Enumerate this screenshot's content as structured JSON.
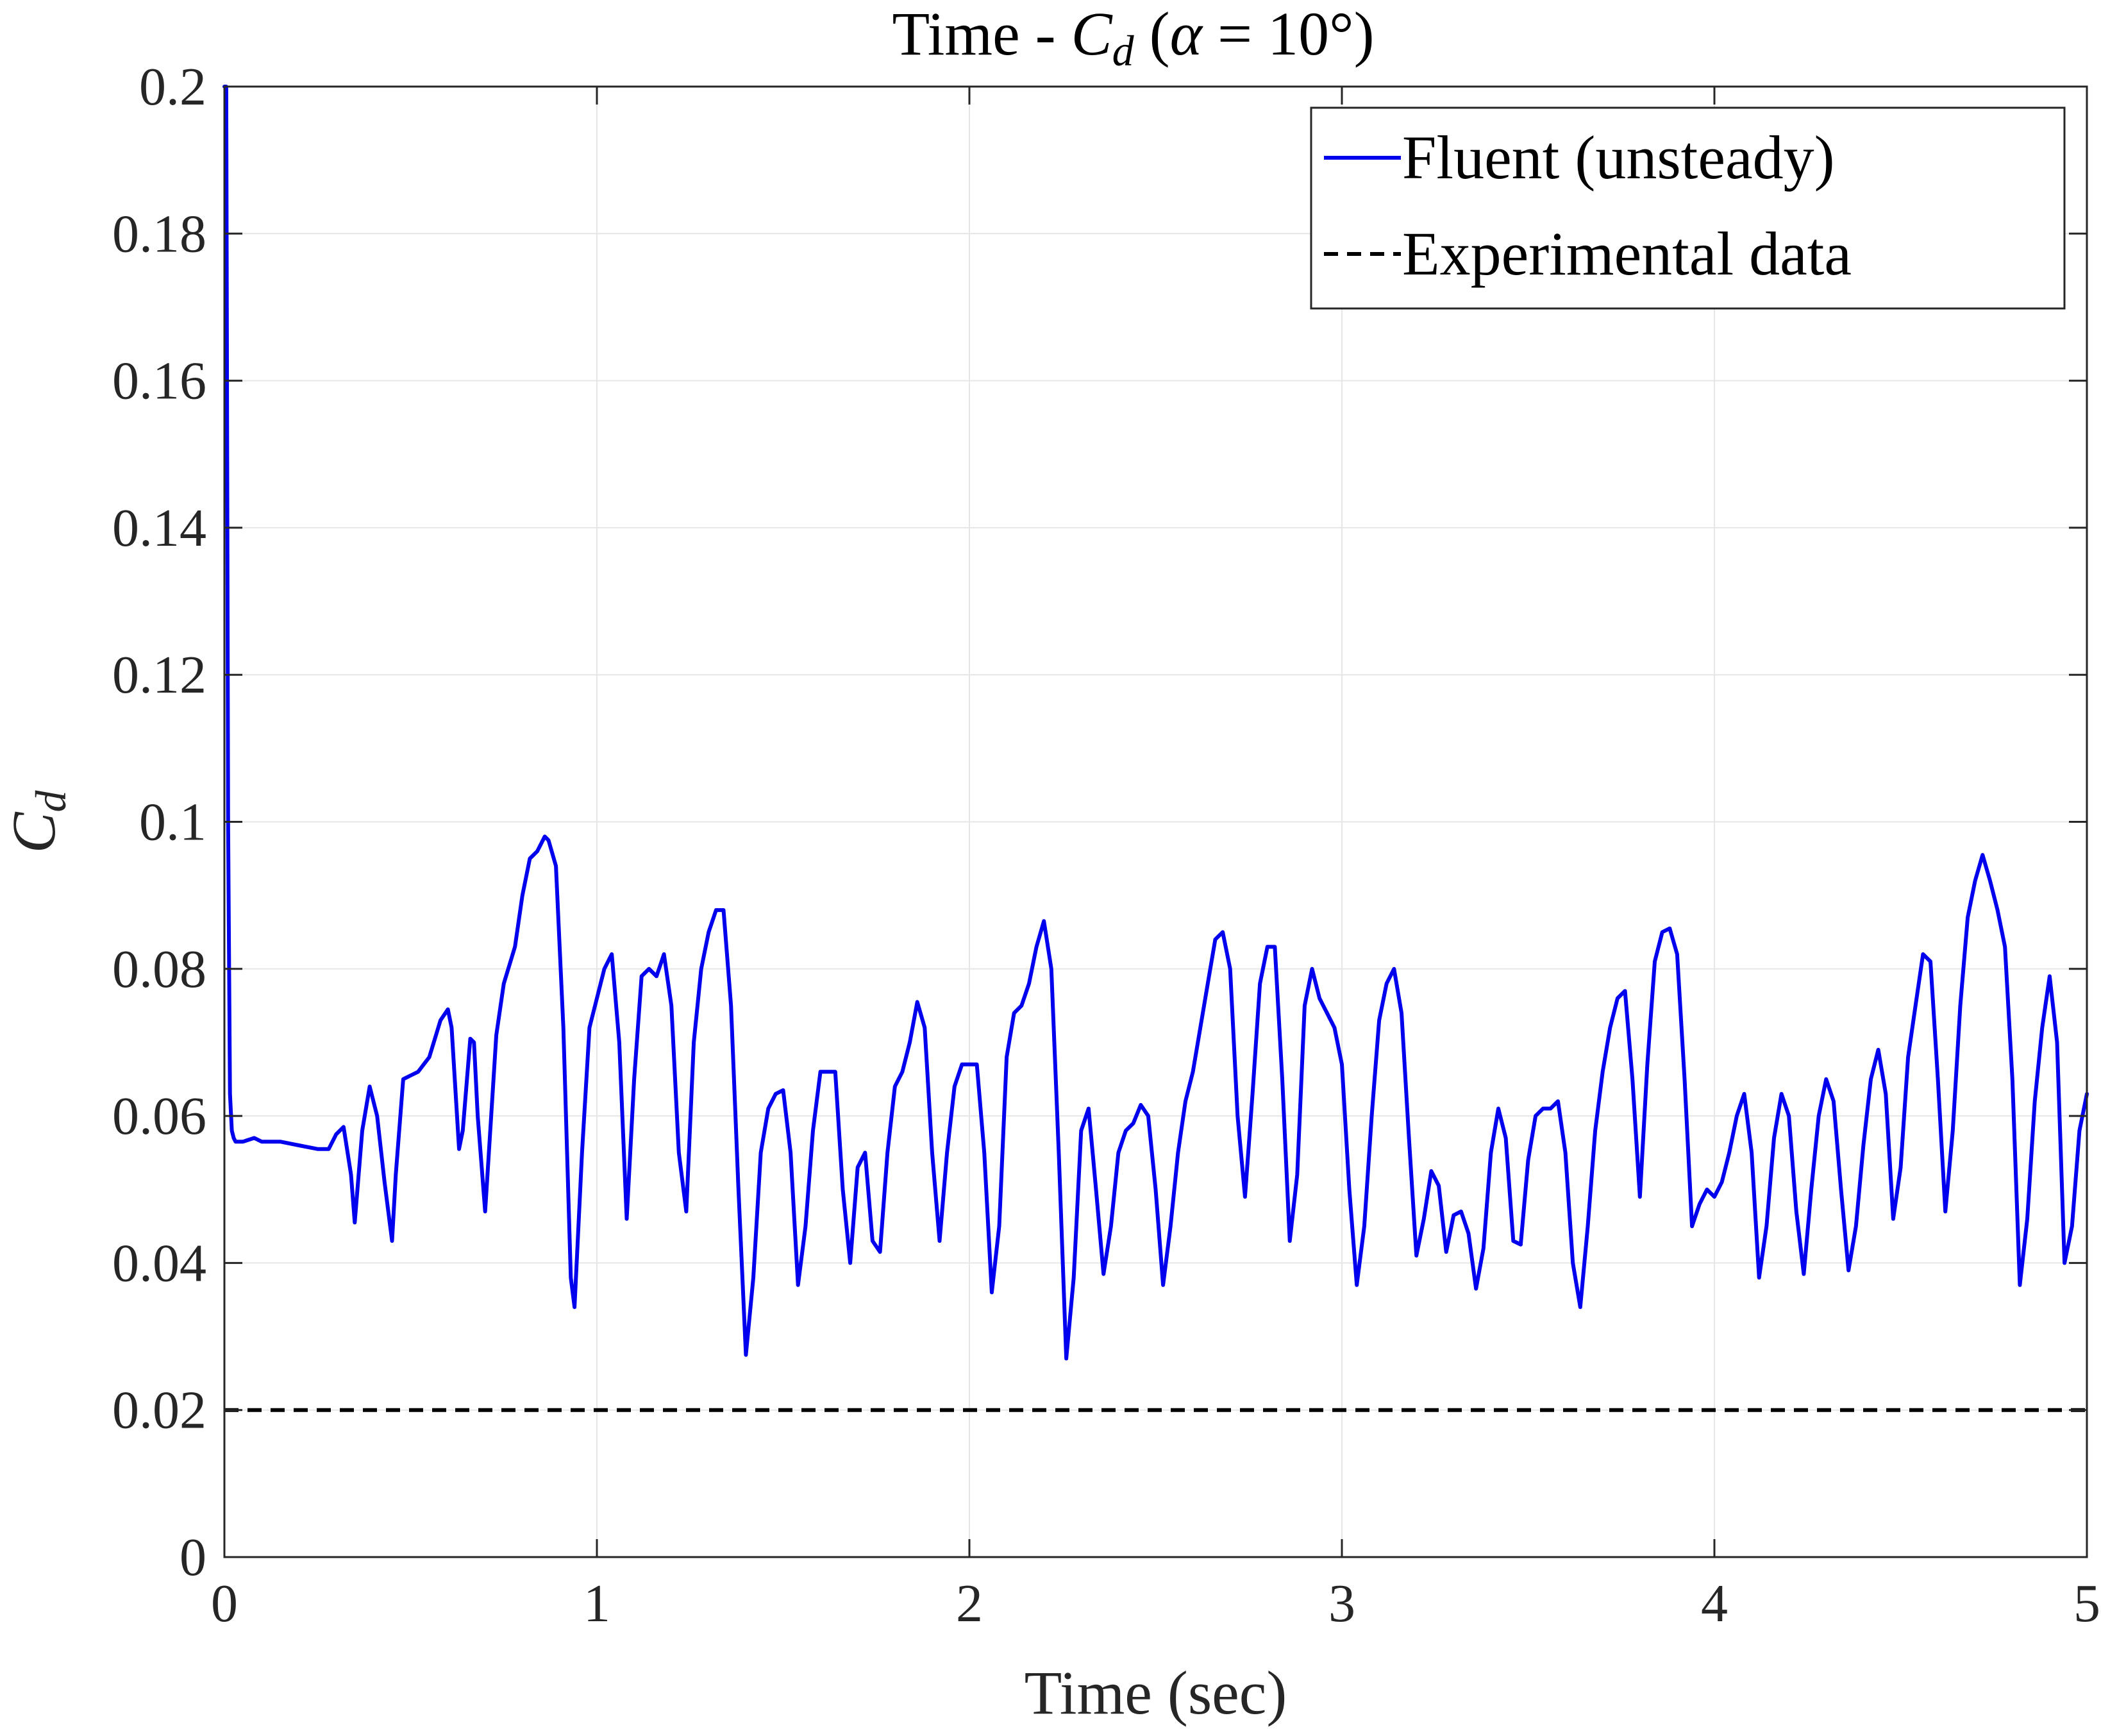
{
  "chart_data": {
    "type": "line",
    "title": "Time - C_d (α = 10°)",
    "xlabel": "Time (sec)",
    "ylabel": "C_d",
    "xlim": [
      0,
      5
    ],
    "ylim": [
      0,
      0.2
    ],
    "xticks": [
      0,
      1,
      2,
      3,
      4,
      5
    ],
    "xtick_labels": [
      "0",
      "1",
      "2",
      "3",
      "4",
      "5"
    ],
    "yticks": [
      0,
      0.02,
      0.04,
      0.06,
      0.08,
      0.1,
      0.12,
      0.14,
      0.16,
      0.18,
      0.2
    ],
    "ytick_labels": [
      "0",
      "0.02",
      "0.04",
      "0.06",
      "0.08",
      "0.1",
      "0.12",
      "0.14",
      "0.16",
      "0.18",
      "0.2"
    ],
    "grid": true,
    "legend_position": "top-right",
    "series": [
      {
        "name": "Fluent (unsteady)",
        "color": "#0000ee",
        "style": "solid",
        "x": [
          0.0,
          0.005,
          0.01,
          0.015,
          0.02,
          0.025,
          0.03,
          0.05,
          0.08,
          0.1,
          0.15,
          0.2,
          0.25,
          0.28,
          0.3,
          0.32,
          0.34,
          0.35,
          0.37,
          0.39,
          0.41,
          0.43,
          0.45,
          0.46,
          0.48,
          0.5,
          0.52,
          0.55,
          0.58,
          0.6,
          0.61,
          0.63,
          0.64,
          0.66,
          0.67,
          0.68,
          0.7,
          0.71,
          0.73,
          0.75,
          0.78,
          0.8,
          0.82,
          0.84,
          0.86,
          0.87,
          0.89,
          0.91,
          0.93,
          0.94,
          0.96,
          0.98,
          1.0,
          1.02,
          1.04,
          1.06,
          1.08,
          1.1,
          1.12,
          1.14,
          1.16,
          1.18,
          1.2,
          1.22,
          1.24,
          1.26,
          1.28,
          1.3,
          1.32,
          1.34,
          1.36,
          1.38,
          1.4,
          1.42,
          1.44,
          1.46,
          1.48,
          1.5,
          1.52,
          1.54,
          1.56,
          1.58,
          1.6,
          1.62,
          1.64,
          1.66,
          1.68,
          1.7,
          1.72,
          1.74,
          1.76,
          1.78,
          1.8,
          1.82,
          1.84,
          1.86,
          1.88,
          1.9,
          1.92,
          1.94,
          1.96,
          1.98,
          2.0,
          2.02,
          2.04,
          2.06,
          2.08,
          2.1,
          2.12,
          2.14,
          2.16,
          2.18,
          2.2,
          2.22,
          2.24,
          2.26,
          2.28,
          2.3,
          2.32,
          2.34,
          2.36,
          2.38,
          2.4,
          2.42,
          2.44,
          2.46,
          2.48,
          2.5,
          2.52,
          2.54,
          2.56,
          2.58,
          2.6,
          2.62,
          2.64,
          2.66,
          2.68,
          2.7,
          2.72,
          2.74,
          2.76,
          2.78,
          2.8,
          2.82,
          2.84,
          2.86,
          2.88,
          2.9,
          2.92,
          2.94,
          2.96,
          2.98,
          3.0,
          3.02,
          3.04,
          3.06,
          3.08,
          3.1,
          3.12,
          3.14,
          3.16,
          3.18,
          3.2,
          3.22,
          3.24,
          3.26,
          3.28,
          3.3,
          3.32,
          3.34,
          3.36,
          3.38,
          3.4,
          3.42,
          3.44,
          3.46,
          3.48,
          3.5,
          3.52,
          3.54,
          3.56,
          3.58,
          3.6,
          3.62,
          3.64,
          3.66,
          3.68,
          3.7,
          3.72,
          3.74,
          3.76,
          3.78,
          3.8,
          3.82,
          3.84,
          3.86,
          3.88,
          3.9,
          3.92,
          3.94,
          3.96,
          3.98,
          4.0,
          4.02,
          4.04,
          4.06,
          4.08,
          4.1,
          4.12,
          4.14,
          4.16,
          4.18,
          4.2,
          4.22,
          4.24,
          4.26,
          4.28,
          4.3,
          4.32,
          4.34,
          4.36,
          4.38,
          4.4,
          4.42,
          4.44,
          4.46,
          4.48,
          4.5,
          4.52,
          4.54,
          4.56,
          4.58,
          4.6,
          4.62,
          4.64,
          4.66,
          4.68,
          4.7,
          4.72,
          4.74,
          4.76,
          4.78,
          4.8,
          4.82,
          4.84,
          4.86,
          4.88,
          4.9,
          4.92,
          4.94,
          4.96,
          4.98,
          5.0
        ],
        "y": [
          0.2,
          0.2,
          0.1,
          0.063,
          0.058,
          0.057,
          0.0565,
          0.0565,
          0.057,
          0.0565,
          0.0565,
          0.056,
          0.0555,
          0.0555,
          0.0575,
          0.0585,
          0.052,
          0.0455,
          0.058,
          0.064,
          0.06,
          0.051,
          0.043,
          0.052,
          0.065,
          0.0655,
          0.066,
          0.068,
          0.073,
          0.0745,
          0.072,
          0.0555,
          0.058,
          0.0705,
          0.07,
          0.06,
          0.047,
          0.055,
          0.071,
          0.078,
          0.083,
          0.09,
          0.095,
          0.096,
          0.098,
          0.0975,
          0.094,
          0.072,
          0.038,
          0.034,
          0.055,
          0.072,
          0.076,
          0.08,
          0.082,
          0.07,
          0.046,
          0.065,
          0.079,
          0.08,
          0.079,
          0.082,
          0.075,
          0.055,
          0.047,
          0.07,
          0.08,
          0.085,
          0.088,
          0.088,
          0.075,
          0.05,
          0.0275,
          0.038,
          0.055,
          0.061,
          0.063,
          0.0635,
          0.055,
          0.037,
          0.045,
          0.058,
          0.066,
          0.066,
          0.066,
          0.05,
          0.04,
          0.053,
          0.055,
          0.043,
          0.0415,
          0.055,
          0.064,
          0.066,
          0.07,
          0.0755,
          0.072,
          0.055,
          0.043,
          0.055,
          0.064,
          0.067,
          0.067,
          0.067,
          0.055,
          0.036,
          0.045,
          0.068,
          0.074,
          0.075,
          0.078,
          0.083,
          0.0865,
          0.08,
          0.055,
          0.027,
          0.038,
          0.058,
          0.061,
          0.05,
          0.0385,
          0.045,
          0.055,
          0.058,
          0.059,
          0.0615,
          0.06,
          0.05,
          0.037,
          0.045,
          0.055,
          0.062,
          0.066,
          0.072,
          0.078,
          0.084,
          0.085,
          0.08,
          0.06,
          0.049,
          0.063,
          0.078,
          0.083,
          0.083,
          0.065,
          0.043,
          0.052,
          0.075,
          0.08,
          0.076,
          0.074,
          0.072,
          0.067,
          0.05,
          0.037,
          0.045,
          0.06,
          0.073,
          0.078,
          0.08,
          0.074,
          0.057,
          0.041,
          0.046,
          0.0525,
          0.0505,
          0.0415,
          0.0465,
          0.047,
          0.044,
          0.0365,
          0.042,
          0.055,
          0.061,
          0.057,
          0.043,
          0.0425,
          0.054,
          0.06,
          0.061,
          0.061,
          0.062,
          0.055,
          0.04,
          0.034,
          0.045,
          0.058,
          0.066,
          0.072,
          0.076,
          0.077,
          0.065,
          0.049,
          0.067,
          0.081,
          0.085,
          0.0855,
          0.082,
          0.065,
          0.045,
          0.048,
          0.05,
          0.049,
          0.051,
          0.055,
          0.06,
          0.063,
          0.055,
          0.038,
          0.045,
          0.057,
          0.063,
          0.06,
          0.047,
          0.0385,
          0.05,
          0.06,
          0.065,
          0.062,
          0.05,
          0.039,
          0.045,
          0.056,
          0.065,
          0.069,
          0.063,
          0.046,
          0.053,
          0.068,
          0.075,
          0.082,
          0.081,
          0.065,
          0.047,
          0.058,
          0.075,
          0.087,
          0.092,
          0.0955,
          0.092,
          0.088,
          0.083,
          0.065,
          0.037,
          0.046,
          0.062,
          0.072,
          0.079,
          0.07,
          0.04,
          0.045,
          0.058,
          0.063
        ]
      },
      {
        "name": "Experimental data",
        "color": "#000000",
        "style": "dashed",
        "x": [
          0,
          5
        ],
        "y": [
          0.02,
          0.02
        ]
      }
    ]
  }
}
